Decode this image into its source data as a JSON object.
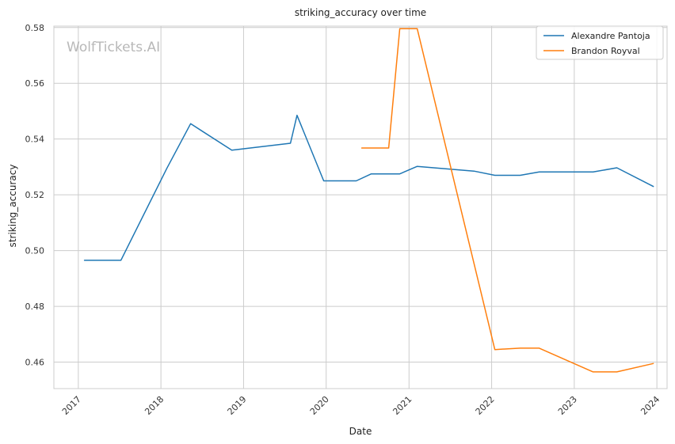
{
  "chart_data": {
    "type": "line",
    "title": "striking_accuracy over time",
    "xlabel": "Date",
    "ylabel": "striking_accuracy",
    "watermark": "WolfTickets.AI",
    "xlim": [
      "2016-09-15",
      "2024-02-15"
    ],
    "ylim": [
      0.4505,
      0.5805
    ],
    "x_ticks": [
      "2017",
      "2018",
      "2019",
      "2020",
      "2021",
      "2022",
      "2023",
      "2024"
    ],
    "y_ticks": [
      0.46,
      0.48,
      0.5,
      0.52,
      0.54,
      0.56,
      0.58
    ],
    "y_tick_labels": [
      "0.46",
      "0.48",
      "0.50",
      "0.52",
      "0.54",
      "0.56",
      "0.58"
    ],
    "grid": true,
    "legend_position": "top-right",
    "series": [
      {
        "name": "Alexandre Pantoja",
        "color": "#1f77b4",
        "points": [
          [
            "2017-01-28",
            0.4965
          ],
          [
            "2017-07-08",
            0.4965
          ],
          [
            "2018-01-27",
            0.5295
          ],
          [
            "2018-05-12",
            0.5455
          ],
          [
            "2018-11-10",
            0.536
          ],
          [
            "2019-07-27",
            0.5385
          ],
          [
            "2019-08-25",
            0.5485
          ],
          [
            "2019-12-21",
            0.525
          ],
          [
            "2020-05-13",
            0.525
          ],
          [
            "2020-07-18",
            0.5275
          ],
          [
            "2020-11-21",
            0.5275
          ],
          [
            "2021-02-06",
            0.5302
          ],
          [
            "2021-10-15",
            0.5285
          ],
          [
            "2022-01-15",
            0.527
          ],
          [
            "2022-05-07",
            0.527
          ],
          [
            "2022-07-30",
            0.5282
          ],
          [
            "2023-03-25",
            0.5282
          ],
          [
            "2023-07-08",
            0.5297
          ],
          [
            "2023-12-16",
            0.523
          ]
        ]
      },
      {
        "name": "Brandon Royval",
        "color": "#ff7f0e",
        "points": [
          [
            "2020-06-06",
            0.5368
          ],
          [
            "2020-10-03",
            0.5368
          ],
          [
            "2020-11-21",
            0.5796
          ],
          [
            "2021-02-06",
            0.5796
          ],
          [
            "2022-01-15",
            0.4645
          ],
          [
            "2022-05-07",
            0.465
          ],
          [
            "2022-07-30",
            0.465
          ],
          [
            "2023-03-25",
            0.4565
          ],
          [
            "2023-07-08",
            0.4565
          ],
          [
            "2023-12-16",
            0.4595
          ]
        ]
      }
    ]
  }
}
